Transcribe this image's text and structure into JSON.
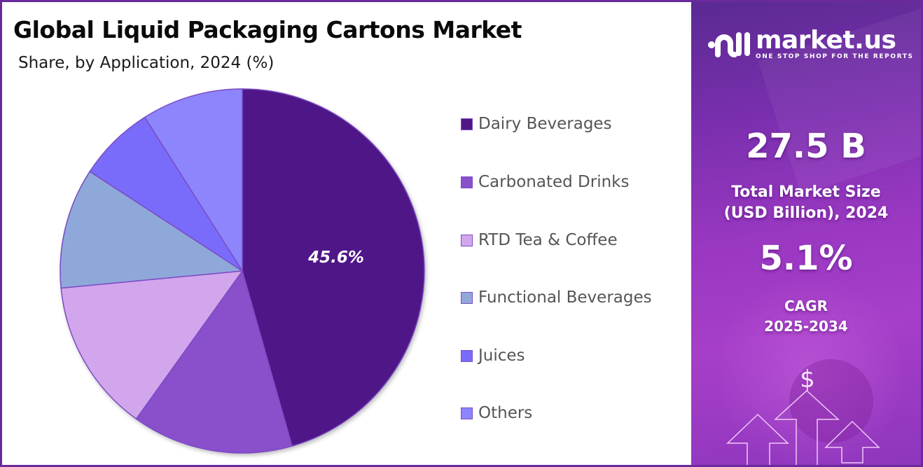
{
  "header": {
    "title": "Global Liquid Packaging Cartons Market",
    "subtitle": "Share, by Application, 2024 (%)"
  },
  "chart_data": {
    "type": "pie",
    "title": "Global Liquid Packaging Cartons Market",
    "subtitle": "Share, by Application, 2024 (%)",
    "categories": [
      "Dairy Beverages",
      "Carbonated Drinks",
      "RTD Tea & Coffee",
      "Functional Beverages",
      "Juices",
      "Others"
    ],
    "values": [
      45.6,
      14.3,
      13.6,
      10.7,
      6.8,
      9.0
    ],
    "colors": [
      "#4F1787",
      "#8A4FCB",
      "#D2A6EC",
      "#8FA8DA",
      "#7A6CFB",
      "#8C85FC"
    ],
    "data_labels": [
      {
        "category": "Dairy Beverages",
        "text": "45.6%"
      }
    ],
    "start_angle": "12 o'clock, clockwise",
    "legend_position": "right"
  },
  "legend": {
    "items": [
      {
        "label": "Dairy Beverages",
        "color": "#4F1787"
      },
      {
        "label": "Carbonated Drinks",
        "color": "#8A4FCB"
      },
      {
        "label": "RTD Tea & Coffee",
        "color": "#D2A6EC"
      },
      {
        "label": "Functional Beverages",
        "color": "#8FA8DA"
      },
      {
        "label": "Juices",
        "color": "#7A6CFB"
      },
      {
        "label": "Others",
        "color": "#8C85FC"
      }
    ]
  },
  "pie_label": "45.6%",
  "sidebar": {
    "logo_name": "market.us",
    "logo_tagline": "ONE STOP SHOP FOR THE REPORTS",
    "market_size_value": "27.5 B",
    "market_size_label_line1": "Total Market Size",
    "market_size_label_line2": "(USD Billion), 2024",
    "cagr_value": "5.1%",
    "cagr_label_line1": "CAGR",
    "cagr_label_line2": "2025-2034",
    "currency_symbol": "$"
  },
  "colors": {
    "frame": "#6a2a9c",
    "panel_top": "#5a2a92",
    "panel_bottom": "#a63ec9"
  }
}
